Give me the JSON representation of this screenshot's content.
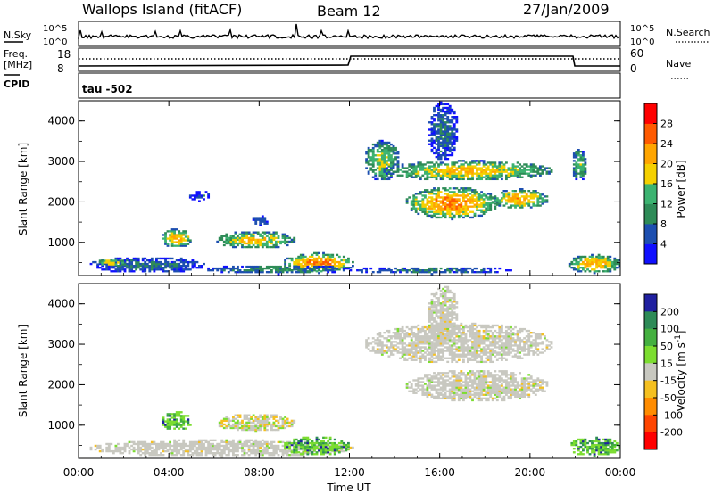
{
  "header": {
    "station": "Wallops Island (fitACF)",
    "beam": "Beam 12",
    "date": "27/Jan/2009"
  },
  "strip_panels": {
    "nsky_label": "N.Sky",
    "nsky_ticks": [
      "10^5",
      "10^0"
    ],
    "nsearch_label": "N.Search",
    "nsearch_ticks": [
      "10^5",
      "10^0"
    ],
    "freq_label": "Freq.",
    "freq_unit": "[MHz]",
    "freq_ticks": [
      "18",
      "8"
    ],
    "nave_label": "Nave",
    "nave_ticks": [
      "60",
      "0"
    ],
    "cpid_label": "CPID",
    "cpid_value": "tau -502"
  },
  "chart_data": [
    {
      "type": "heatmap",
      "name": "power-panel",
      "ylabel": "Slant Range [km]",
      "xlabel": "",
      "x_ticks": [
        "00:00",
        "04:00",
        "08:00",
        "12:00",
        "16:00",
        "20:00",
        "00:00"
      ],
      "x_range_hours": [
        0,
        24
      ],
      "y_ticks": [
        "1000",
        "2000",
        "3000",
        "4000"
      ],
      "y_range_km": [
        180,
        4500
      ],
      "colorbar": {
        "label": "Power [dB]",
        "ticks": [
          "4",
          "8",
          "12",
          "16",
          "20",
          "24",
          "28"
        ],
        "range": [
          0,
          32
        ],
        "colors": [
          "#1010ff",
          "#1d4fb0",
          "#2e8b57",
          "#3cb371",
          "#f5d000",
          "#ffa500",
          "#ff5a00",
          "#ff0000"
        ]
      },
      "regions": [
        {
          "t0": 0.4,
          "t1": 5.6,
          "r0": 220,
          "r1": 620,
          "level": 8
        },
        {
          "t0": 0.7,
          "t1": 2.1,
          "r0": 390,
          "r1": 560,
          "level": 20
        },
        {
          "t0": 3.6,
          "t1": 5.0,
          "r0": 850,
          "r1": 1320,
          "level": 22
        },
        {
          "t0": 4.8,
          "t1": 5.8,
          "r0": 2000,
          "r1": 2250,
          "level": 6
        },
        {
          "t0": 6.0,
          "t1": 9.6,
          "r0": 820,
          "r1": 1260,
          "level": 20
        },
        {
          "t0": 7.6,
          "t1": 8.4,
          "r0": 1400,
          "r1": 1650,
          "level": 6
        },
        {
          "t0": 9.0,
          "t1": 12.2,
          "r0": 220,
          "r1": 720,
          "level": 24
        },
        {
          "t0": 5.6,
          "t1": 12.0,
          "r0": 200,
          "r1": 420,
          "level": 10
        },
        {
          "t0": 12.0,
          "t1": 19.2,
          "r0": 200,
          "r1": 380,
          "level": 8
        },
        {
          "t0": 12.6,
          "t1": 14.2,
          "r0": 2500,
          "r1": 3500,
          "level": 16
        },
        {
          "t0": 13.4,
          "t1": 21.0,
          "r0": 2500,
          "r1": 3000,
          "level": 20
        },
        {
          "t0": 14.4,
          "t1": 18.6,
          "r0": 1550,
          "r1": 2350,
          "level": 24
        },
        {
          "t0": 15.4,
          "t1": 16.8,
          "r0": 3000,
          "r1": 4450,
          "level": 8
        },
        {
          "t0": 18.2,
          "t1": 20.8,
          "r0": 1800,
          "r1": 2300,
          "level": 22
        },
        {
          "t0": 21.8,
          "t1": 22.5,
          "r0": 2500,
          "r1": 3300,
          "level": 14
        },
        {
          "t0": 21.6,
          "t1": 24.0,
          "r0": 220,
          "r1": 680,
          "level": 22
        }
      ]
    },
    {
      "type": "heatmap",
      "name": "velocity-panel",
      "ylabel": "Slant Range [km]",
      "xlabel": "Time UT",
      "x_ticks": [
        "00:00",
        "04:00",
        "08:00",
        "12:00",
        "16:00",
        "20:00",
        "00:00"
      ],
      "x_range_hours": [
        0,
        24
      ],
      "y_ticks": [
        "1000",
        "2000",
        "3000",
        "4000"
      ],
      "y_range_km": [
        180,
        4500
      ],
      "colorbar": {
        "label": "Velocity [m s^-1]",
        "ticks": [
          "200",
          "100",
          "50",
          "15",
          "-15",
          "-50",
          "-100",
          "-200"
        ],
        "colors": [
          "#2020a0",
          "#2e8b57",
          "#44b040",
          "#7cdd30",
          "#c8c8c0",
          "#f5c020",
          "#ff8c00",
          "#ff4500",
          "#ff0000"
        ]
      },
      "regions": [
        {
          "t0": 0.4,
          "t1": 12.2,
          "r0": 200,
          "r1": 620,
          "value": "gray"
        },
        {
          "t0": 3.6,
          "t1": 5.0,
          "r0": 850,
          "r1": 1320,
          "value": "green"
        },
        {
          "t0": 6.0,
          "t1": 9.6,
          "r0": 820,
          "r1": 1260,
          "value": "mixed"
        },
        {
          "t0": 9.0,
          "t1": 12.0,
          "r0": 220,
          "r1": 700,
          "value": "green"
        },
        {
          "t0": 12.6,
          "t1": 21.0,
          "r0": 2500,
          "r1": 3500,
          "value": "gray"
        },
        {
          "t0": 14.4,
          "t1": 20.8,
          "r0": 1550,
          "r1": 2350,
          "value": "gray"
        },
        {
          "t0": 15.4,
          "t1": 16.8,
          "r0": 3000,
          "r1": 4450,
          "value": "gray"
        },
        {
          "t0": 21.6,
          "t1": 24.0,
          "r0": 220,
          "r1": 680,
          "value": "green"
        }
      ]
    }
  ]
}
